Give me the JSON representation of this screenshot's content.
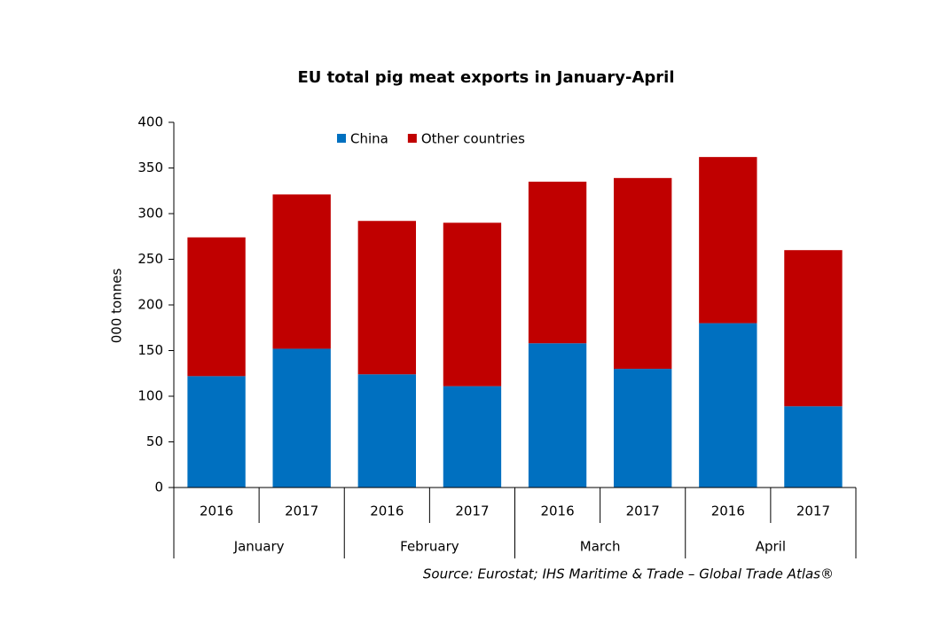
{
  "chart_data": {
    "type": "stacked_bar",
    "title": "EU total pig meat exports in January-April",
    "y_label": "000 tonnes",
    "categories": [
      "2016",
      "2017",
      "2016",
      "2017",
      "2016",
      "2017",
      "2016",
      "2017"
    ],
    "groups": [
      "January",
      "February",
      "March",
      "April"
    ],
    "series": [
      {
        "name": "China",
        "color": "#0070c0",
        "values": [
          122,
          152,
          124,
          111,
          158,
          130,
          180,
          89
        ]
      },
      {
        "name": "Other countries",
        "color": "#c00000",
        "values": [
          152,
          169,
          168,
          179,
          177,
          209,
          182,
          171
        ]
      }
    ],
    "ylim": [
      0,
      400
    ],
    "yticks": [
      0,
      50,
      100,
      150,
      200,
      250,
      300,
      350,
      400
    ],
    "legend": "top",
    "source": "Source: Eurostat; IHS Maritime & Trade – Global Trade Atlas®"
  }
}
